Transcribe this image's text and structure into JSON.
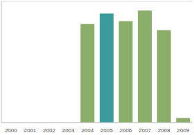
{
  "chart_data": {
    "type": "bar",
    "categories": [
      "2000",
      "2001",
      "2002",
      "2003",
      "2004",
      "2005",
      "2006",
      "2007",
      "2008",
      "2009"
    ],
    "values": [
      0,
      0,
      0,
      0,
      6.5,
      7.2,
      6.7,
      7.4,
      6.1,
      0.3
    ],
    "colors": [
      "#8aae69",
      "#8aae69",
      "#8aae69",
      "#8aae69",
      "#8aae69",
      "#3b9a9a",
      "#8aae69",
      "#8aae69",
      "#8aae69",
      "#8aae69"
    ],
    "ylim": [
      0,
      8
    ],
    "yticks": [
      0,
      1,
      2,
      3,
      4,
      5,
      6,
      7,
      8
    ],
    "grid": true,
    "tick_labels": "x"
  }
}
